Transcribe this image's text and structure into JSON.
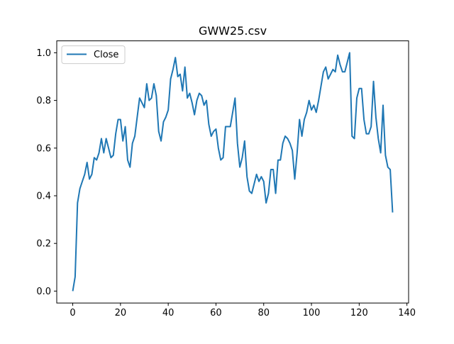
{
  "chart_data": {
    "type": "line",
    "title": "GWW25.csv",
    "xlabel": "",
    "ylabel": "",
    "xlim": [
      -6.7,
      140.7
    ],
    "ylim": [
      -0.05,
      1.05
    ],
    "xticks": [
      0,
      20,
      40,
      60,
      80,
      100,
      120,
      140
    ],
    "yticks": [
      0.0,
      0.2,
      0.4,
      0.6,
      0.8,
      1.0
    ],
    "xtick_labels": [
      "0",
      "20",
      "40",
      "60",
      "80",
      "100",
      "120",
      "140"
    ],
    "ytick_labels": [
      "0.0",
      "0.2",
      "0.4",
      "0.6",
      "0.8",
      "1.0"
    ],
    "grid": false,
    "legend_position": "upper-left",
    "series": [
      {
        "name": "Close",
        "color": "#1f77b4",
        "x": [
          0,
          1,
          2,
          3,
          4,
          5,
          6,
          7,
          8,
          9,
          10,
          11,
          12,
          13,
          14,
          15,
          16,
          17,
          18,
          19,
          20,
          21,
          22,
          23,
          24,
          25,
          26,
          27,
          28,
          29,
          30,
          31,
          32,
          33,
          34,
          35,
          36,
          37,
          38,
          39,
          40,
          41,
          42,
          43,
          44,
          45,
          46,
          47,
          48,
          49,
          50,
          51,
          52,
          53,
          54,
          55,
          56,
          57,
          58,
          59,
          60,
          61,
          62,
          63,
          64,
          65,
          66,
          67,
          68,
          69,
          70,
          71,
          72,
          73,
          74,
          75,
          76,
          77,
          78,
          79,
          80,
          81,
          82,
          83,
          84,
          85,
          86,
          87,
          88,
          89,
          90,
          91,
          92,
          93,
          94,
          95,
          96,
          97,
          98,
          99,
          100,
          101,
          102,
          103,
          104,
          105,
          106,
          107,
          108,
          109,
          110,
          111,
          112,
          113,
          114,
          115,
          116,
          117,
          118,
          119,
          120,
          121,
          122,
          123,
          124,
          125,
          126,
          127,
          128,
          129,
          130,
          131,
          132,
          133,
          134
        ],
        "values": [
          0.0,
          0.06,
          0.37,
          0.43,
          0.46,
          0.49,
          0.54,
          0.47,
          0.49,
          0.56,
          0.55,
          0.58,
          0.64,
          0.58,
          0.64,
          0.6,
          0.56,
          0.57,
          0.66,
          0.72,
          0.72,
          0.63,
          0.69,
          0.55,
          0.52,
          0.62,
          0.65,
          0.73,
          0.81,
          0.79,
          0.77,
          0.87,
          0.8,
          0.81,
          0.87,
          0.82,
          0.67,
          0.63,
          0.71,
          0.73,
          0.76,
          0.89,
          0.93,
          0.98,
          0.9,
          0.91,
          0.84,
          0.94,
          0.81,
          0.83,
          0.79,
          0.74,
          0.8,
          0.83,
          0.82,
          0.78,
          0.8,
          0.7,
          0.65,
          0.67,
          0.68,
          0.6,
          0.55,
          0.56,
          0.69,
          0.69,
          0.69,
          0.75,
          0.81,
          0.62,
          0.52,
          0.56,
          0.63,
          0.48,
          0.42,
          0.41,
          0.45,
          0.49,
          0.46,
          0.48,
          0.46,
          0.37,
          0.41,
          0.51,
          0.51,
          0.41,
          0.55,
          0.55,
          0.62,
          0.65,
          0.64,
          0.62,
          0.59,
          0.47,
          0.58,
          0.72,
          0.65,
          0.72,
          0.75,
          0.8,
          0.76,
          0.78,
          0.75,
          0.8,
          0.86,
          0.92,
          0.94,
          0.89,
          0.91,
          0.93,
          0.92,
          0.99,
          0.95,
          0.92,
          0.92,
          0.96,
          1.0,
          0.65,
          0.64,
          0.81,
          0.85,
          0.85,
          0.72,
          0.66,
          0.66,
          0.69,
          0.88,
          0.73,
          0.64,
          0.58,
          0.78,
          0.57,
          0.52,
          0.51,
          0.33
        ]
      }
    ]
  }
}
